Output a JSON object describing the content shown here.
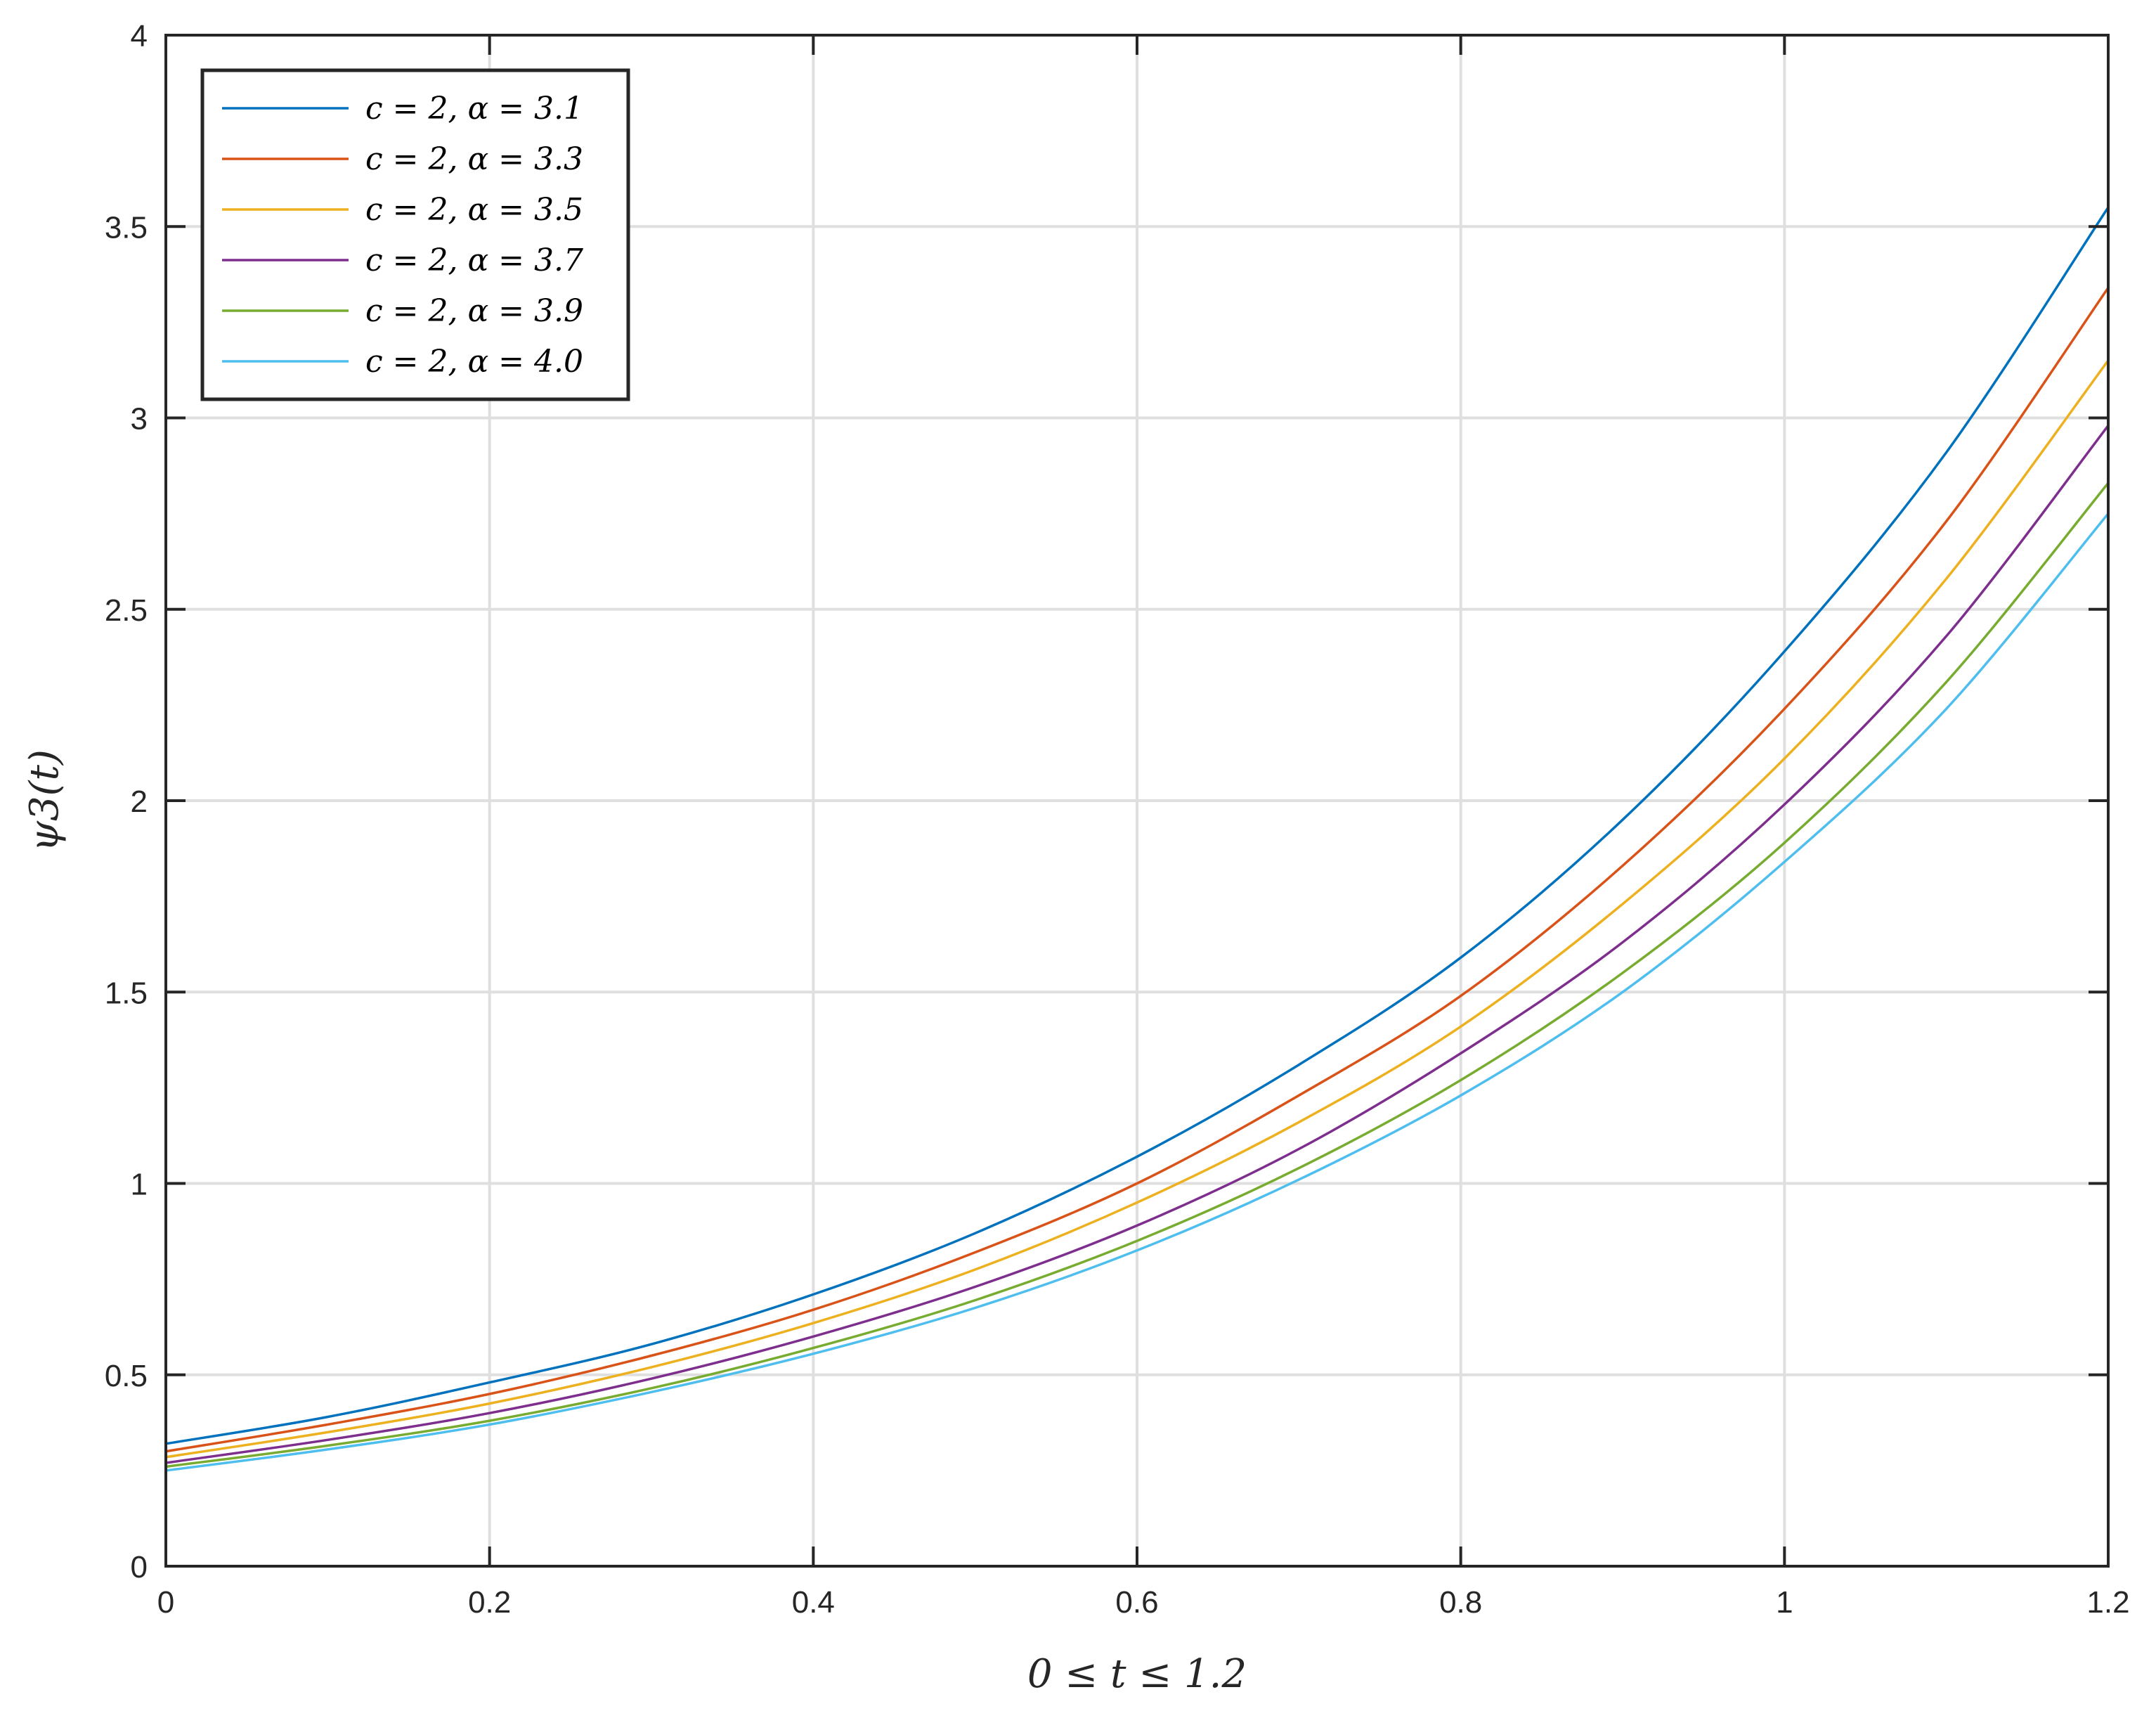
{
  "chart_data": {
    "type": "line",
    "title": "",
    "xlabel": "0 ≤ t ≤ 1.2",
    "ylabel": "ψ3(t)",
    "xlim": [
      0,
      1.2
    ],
    "ylim": [
      0,
      4
    ],
    "xticks": [
      0,
      0.2,
      0.4,
      0.6,
      0.8,
      1,
      1.2
    ],
    "xtick_labels": [
      "0",
      "0.2",
      "0.4",
      "0.6",
      "0.8",
      "1",
      "1.2"
    ],
    "yticks": [
      0,
      0.5,
      1,
      1.5,
      2,
      2.5,
      3,
      3.5,
      4
    ],
    "ytick_labels": [
      "0",
      "0.5",
      "1",
      "1.5",
      "2",
      "2.5",
      "3",
      "3.5",
      "4"
    ],
    "grid": true,
    "legend_position": "top-left",
    "x": [
      0,
      0.1,
      0.2,
      0.3,
      0.4,
      0.5,
      0.6,
      0.7,
      0.8,
      0.9,
      1.0,
      1.1,
      1.2
    ],
    "series": [
      {
        "name": "c = 2, α = 3.1",
        "color": "#0072BD",
        "values": [
          0.32,
          0.39,
          0.48,
          0.58,
          0.71,
          0.87,
          1.07,
          1.31,
          1.59,
          1.95,
          2.39,
          2.91,
          3.55
        ]
      },
      {
        "name": "c = 2, α = 3.3",
        "color": "#D95319",
        "values": [
          0.3,
          0.37,
          0.45,
          0.55,
          0.67,
          0.82,
          1.0,
          1.23,
          1.49,
          1.83,
          2.24,
          2.73,
          3.34
        ]
      },
      {
        "name": "c = 2, α = 3.5",
        "color": "#EDB120",
        "values": [
          0.285,
          0.35,
          0.425,
          0.52,
          0.635,
          0.775,
          0.95,
          1.16,
          1.41,
          1.73,
          2.11,
          2.58,
          3.15
        ]
      },
      {
        "name": "c = 2, α = 3.7",
        "color": "#7E2F8E",
        "values": [
          0.27,
          0.33,
          0.4,
          0.49,
          0.6,
          0.73,
          0.89,
          1.09,
          1.34,
          1.63,
          1.99,
          2.43,
          2.98
        ]
      },
      {
        "name": "c = 2, α = 3.9",
        "color": "#77AC30",
        "values": [
          0.26,
          0.315,
          0.38,
          0.465,
          0.57,
          0.695,
          0.85,
          1.04,
          1.27,
          1.55,
          1.89,
          2.31,
          2.83
        ]
      },
      {
        "name": "c = 2, α = 4.0",
        "color": "#4DBEEE",
        "values": [
          0.25,
          0.305,
          0.37,
          0.455,
          0.555,
          0.675,
          0.825,
          1.01,
          1.23,
          1.5,
          1.84,
          2.24,
          2.75
        ]
      }
    ]
  }
}
